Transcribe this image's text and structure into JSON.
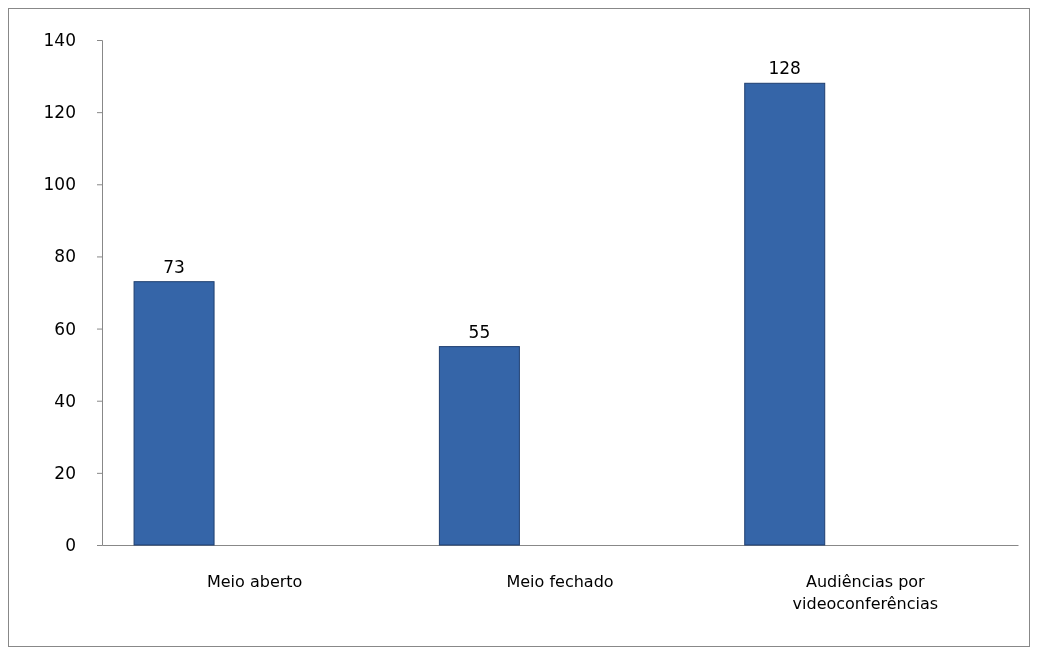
{
  "chart_data": {
    "type": "bar",
    "categories": [
      "Meio aberto",
      "Meio fechado",
      "Audiências por videoconferências"
    ],
    "values": [
      73,
      55,
      128
    ],
    "color": "#3565a8",
    "ylim": [
      0,
      140
    ],
    "yticks": [
      0,
      20,
      40,
      60,
      80,
      100,
      120,
      140
    ],
    "grid": false,
    "data_labels": true
  }
}
